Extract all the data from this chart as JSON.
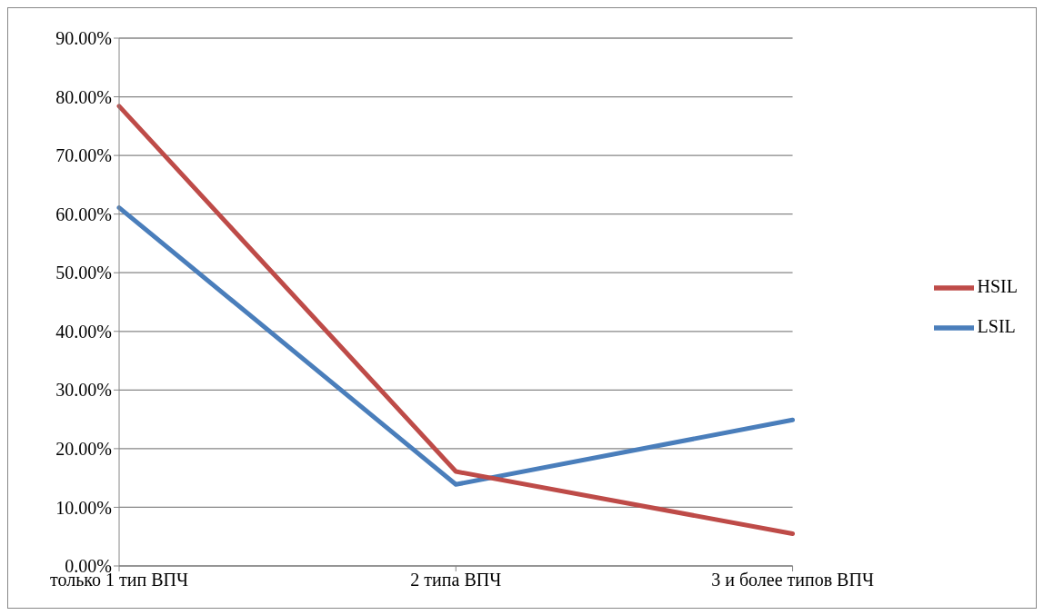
{
  "chart_data": {
    "type": "line",
    "categories": [
      "только 1 тип ВПЧ",
      "2 типа ВПЧ",
      "3 и более типов ВПЧ"
    ],
    "series": [
      {
        "name": "LSIL",
        "color": "#4a7ebb",
        "values": [
          61.1,
          13.9,
          24.9
        ]
      },
      {
        "name": "HSIL",
        "color": "#be4b48",
        "values": [
          78.4,
          16.1,
          5.5
        ]
      }
    ],
    "ylim": [
      0,
      90
    ],
    "yticks": [
      {
        "value": 0,
        "label": "0.00%"
      },
      {
        "value": 10,
        "label": "10.00%"
      },
      {
        "value": 20,
        "label": "20.00%"
      },
      {
        "value": 30,
        "label": "30.00%"
      },
      {
        "value": 40,
        "label": "40.00%"
      },
      {
        "value": 50,
        "label": "50.00%"
      },
      {
        "value": 60,
        "label": "60.00%"
      },
      {
        "value": 70,
        "label": "70.00%"
      },
      {
        "value": 80,
        "label": "80.00%"
      },
      {
        "value": 90,
        "label": "90.00%"
      }
    ],
    "grid": "y",
    "legend": "right",
    "marker": "none",
    "line_style": "solid"
  }
}
